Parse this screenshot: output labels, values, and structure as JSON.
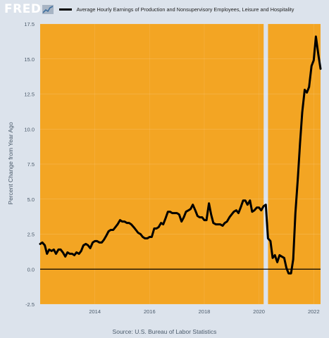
{
  "header": {
    "logo_text": "FRED",
    "logo_icon": "fred-sparkline-icon",
    "brand_color": "#ffffff"
  },
  "chart_data": {
    "type": "line",
    "title": "",
    "legend": [
      "Average Hourly Earnings of Production and Nonsupervisory Employees, Leisure and Hospitality"
    ],
    "ylabel": "Percent Change from Year Ago",
    "xlabel": "",
    "source": "Source: U.S. Bureau of Labor Statistics",
    "xlim": [
      2012.0,
      2022.25
    ],
    "ylim": [
      -2.5,
      17.5
    ],
    "y_ticks": [
      -2.5,
      0.0,
      2.5,
      5.0,
      7.5,
      10.0,
      12.5,
      15.0,
      17.5
    ],
    "y_tick_labels": [
      "-2.5",
      "0.0",
      "2.5",
      "5.0",
      "7.5",
      "10.0",
      "12.5",
      "15.0",
      "17.5"
    ],
    "x_ticks": [
      2014,
      2016,
      2018,
      2020,
      2022
    ],
    "x_tick_labels": [
      "2014",
      "2016",
      "2018",
      "2020",
      "2022"
    ],
    "recession": [
      2020.17,
      2020.33
    ],
    "colors": {
      "plot_bg": "#f3a523",
      "recession": "#dce3ec",
      "line": "#000000",
      "zero_line": "#000000"
    },
    "grid": true,
    "series": [
      {
        "values": [
          [
            2012.0,
            1.8
          ],
          [
            2012.08,
            1.9
          ],
          [
            2012.17,
            1.7
          ],
          [
            2012.25,
            1.1
          ],
          [
            2012.33,
            1.4
          ],
          [
            2012.42,
            1.3
          ],
          [
            2012.5,
            1.4
          ],
          [
            2012.58,
            1.1
          ],
          [
            2012.67,
            1.4
          ],
          [
            2012.75,
            1.4
          ],
          [
            2012.83,
            1.2
          ],
          [
            2012.92,
            0.9
          ],
          [
            2013.0,
            1.2
          ],
          [
            2013.08,
            1.1
          ],
          [
            2013.17,
            1.1
          ],
          [
            2013.25,
            1.0
          ],
          [
            2013.33,
            1.2
          ],
          [
            2013.42,
            1.1
          ],
          [
            2013.5,
            1.3
          ],
          [
            2013.58,
            1.7
          ],
          [
            2013.67,
            1.8
          ],
          [
            2013.75,
            1.7
          ],
          [
            2013.83,
            1.5
          ],
          [
            2013.92,
            1.9
          ],
          [
            2014.0,
            2.0
          ],
          [
            2014.08,
            2.0
          ],
          [
            2014.17,
            1.9
          ],
          [
            2014.25,
            1.9
          ],
          [
            2014.33,
            2.1
          ],
          [
            2014.42,
            2.4
          ],
          [
            2014.5,
            2.7
          ],
          [
            2014.58,
            2.8
          ],
          [
            2014.67,
            2.8
          ],
          [
            2014.75,
            3.0
          ],
          [
            2014.83,
            3.2
          ],
          [
            2014.92,
            3.5
          ],
          [
            2015.0,
            3.4
          ],
          [
            2015.08,
            3.4
          ],
          [
            2015.17,
            3.3
          ],
          [
            2015.25,
            3.3
          ],
          [
            2015.33,
            3.2
          ],
          [
            2015.42,
            3.0
          ],
          [
            2015.5,
            2.8
          ],
          [
            2015.58,
            2.6
          ],
          [
            2015.67,
            2.5
          ],
          [
            2015.75,
            2.3
          ],
          [
            2015.83,
            2.2
          ],
          [
            2015.92,
            2.2
          ],
          [
            2016.0,
            2.3
          ],
          [
            2016.08,
            2.3
          ],
          [
            2016.17,
            2.9
          ],
          [
            2016.25,
            2.9
          ],
          [
            2016.33,
            3.0
          ],
          [
            2016.42,
            3.3
          ],
          [
            2016.5,
            3.2
          ],
          [
            2016.58,
            3.6
          ],
          [
            2016.67,
            4.1
          ],
          [
            2016.75,
            4.1
          ],
          [
            2016.83,
            4.0
          ],
          [
            2016.92,
            4.0
          ],
          [
            2017.0,
            4.0
          ],
          [
            2017.08,
            3.9
          ],
          [
            2017.17,
            3.4
          ],
          [
            2017.25,
            3.7
          ],
          [
            2017.33,
            4.1
          ],
          [
            2017.42,
            4.2
          ],
          [
            2017.5,
            4.3
          ],
          [
            2017.58,
            4.6
          ],
          [
            2017.67,
            4.2
          ],
          [
            2017.75,
            3.8
          ],
          [
            2017.83,
            3.7
          ],
          [
            2017.92,
            3.7
          ],
          [
            2018.0,
            3.5
          ],
          [
            2018.08,
            3.5
          ],
          [
            2018.17,
            4.7
          ],
          [
            2018.25,
            3.9
          ],
          [
            2018.33,
            3.3
          ],
          [
            2018.42,
            3.2
          ],
          [
            2018.5,
            3.2
          ],
          [
            2018.58,
            3.2
          ],
          [
            2018.67,
            3.1
          ],
          [
            2018.75,
            3.3
          ],
          [
            2018.83,
            3.4
          ],
          [
            2018.92,
            3.7
          ],
          [
            2019.0,
            3.9
          ],
          [
            2019.08,
            4.1
          ],
          [
            2019.17,
            4.2
          ],
          [
            2019.25,
            4.0
          ],
          [
            2019.33,
            4.4
          ],
          [
            2019.42,
            4.9
          ],
          [
            2019.5,
            4.9
          ],
          [
            2019.58,
            4.6
          ],
          [
            2019.67,
            4.9
          ],
          [
            2019.75,
            4.1
          ],
          [
            2019.83,
            4.2
          ],
          [
            2019.92,
            4.4
          ],
          [
            2020.0,
            4.4
          ],
          [
            2020.08,
            4.2
          ],
          [
            2020.17,
            4.5
          ],
          [
            2020.25,
            4.6
          ],
          [
            2020.33,
            2.2
          ],
          [
            2020.42,
            2.0
          ],
          [
            2020.5,
            0.8
          ],
          [
            2020.58,
            1.0
          ],
          [
            2020.67,
            0.5
          ],
          [
            2020.75,
            1.0
          ],
          [
            2020.83,
            0.9
          ],
          [
            2020.92,
            0.8
          ],
          [
            2021.0,
            0.1
          ],
          [
            2021.08,
            -0.3
          ],
          [
            2021.17,
            -0.3
          ],
          [
            2021.25,
            0.7
          ],
          [
            2021.33,
            4.0
          ],
          [
            2021.42,
            6.5
          ],
          [
            2021.5,
            9.0
          ],
          [
            2021.58,
            11.2
          ],
          [
            2021.67,
            12.8
          ],
          [
            2021.75,
            12.6
          ],
          [
            2021.83,
            13.0
          ],
          [
            2021.92,
            14.5
          ],
          [
            2022.0,
            14.9
          ],
          [
            2022.08,
            16.6
          ],
          [
            2022.17,
            15.3
          ],
          [
            2022.25,
            14.3
          ]
        ]
      }
    ]
  }
}
